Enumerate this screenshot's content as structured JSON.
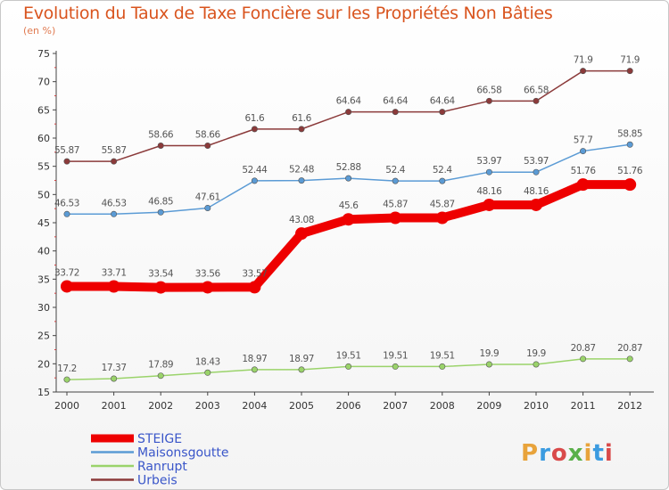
{
  "header": {
    "title": "Evolution du Taux de Taxe Foncière sur les Propriétés Non Bâties",
    "subtitle": "(en %)"
  },
  "logo": {
    "text": "Proxiti",
    "colors": [
      "#e8a33b",
      "#3b9be0",
      "#d94a4a",
      "#5ab04a"
    ]
  },
  "chart_data": {
    "type": "line",
    "x": [
      "2000",
      "2001",
      "2002",
      "2003",
      "2004",
      "2005",
      "2006",
      "2007",
      "2008",
      "2009",
      "2010",
      "2011",
      "2012"
    ],
    "ylim": [
      15,
      75
    ],
    "yticks": [
      15,
      20,
      25,
      30,
      35,
      40,
      45,
      50,
      55,
      60,
      65,
      70,
      75
    ],
    "grid": false,
    "legend_position": "bottom-left",
    "series": [
      {
        "name": "STEIGE",
        "color": "#ee0000",
        "highlight": true,
        "values": [
          33.72,
          33.71,
          33.54,
          33.56,
          33.57,
          43.08,
          45.6,
          45.87,
          45.87,
          48.16,
          48.16,
          51.76,
          51.76
        ],
        "labels": [
          "33.72",
          "33.71",
          "33.54",
          "33.56",
          "33.57",
          "43.08",
          "45.6",
          "45.87",
          "45.87",
          "48.16",
          "48.16",
          "51.76",
          "51.76"
        ]
      },
      {
        "name": "Maisonsgoutte",
        "color": "#5b9bd5",
        "highlight": false,
        "values": [
          46.53,
          46.53,
          46.85,
          47.61,
          52.44,
          52.48,
          52.88,
          52.4,
          52.4,
          53.97,
          53.97,
          57.7,
          58.85
        ],
        "labels": [
          "46.53",
          "46.53",
          "46.85",
          "47.61",
          "52.44",
          "52.48",
          "52.88",
          "52.4",
          "52.4",
          "53.97",
          "53.97",
          "57.7",
          "58.85"
        ]
      },
      {
        "name": "Ranrupt",
        "color": "#9ad36a",
        "highlight": false,
        "values": [
          17.2,
          17.37,
          17.89,
          18.43,
          18.97,
          18.97,
          19.51,
          19.51,
          19.51,
          19.9,
          19.9,
          20.87,
          20.87
        ],
        "labels": [
          "17.2",
          "17.37",
          "17.89",
          "18.43",
          "18.97",
          "18.97",
          "19.51",
          "19.51",
          "19.51",
          "19.9",
          "19.9",
          "20.87",
          "20.87"
        ]
      },
      {
        "name": "Urbeis",
        "color": "#8b3a3a",
        "highlight": false,
        "values": [
          55.87,
          55.87,
          58.66,
          58.66,
          61.6,
          61.6,
          64.64,
          64.64,
          64.64,
          66.58,
          66.58,
          71.9,
          71.9
        ],
        "labels": [
          "55.87",
          "55.87",
          "58.66",
          "58.66",
          "61.6",
          "61.6",
          "64.64",
          "64.64",
          "64.64",
          "66.58",
          "66.58",
          "71.9",
          "71.9"
        ]
      }
    ]
  }
}
